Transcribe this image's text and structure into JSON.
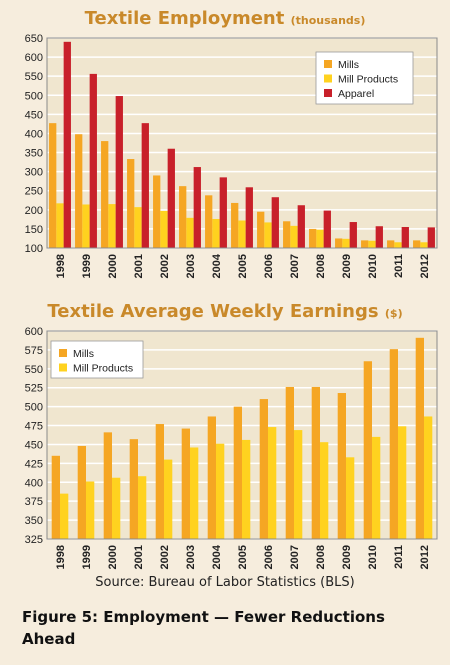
{
  "chart_data": [
    {
      "type": "bar",
      "title": "Textile Employment",
      "unit": "(thousands)",
      "categories": [
        "1998",
        "1999",
        "2000",
        "2001",
        "2002",
        "2003",
        "2004",
        "2005",
        "2006",
        "2007",
        "2008",
        "2009",
        "2010",
        "2011",
        "2012"
      ],
      "ylim": [
        100,
        650
      ],
      "yticks": [
        100,
        150,
        200,
        250,
        300,
        350,
        400,
        450,
        500,
        550,
        600,
        650
      ],
      "legend_position": "top-right",
      "grid": true,
      "series": [
        {
          "name": "Mills",
          "color": "#f5a623",
          "values": [
            427,
            398,
            380,
            333,
            290,
            262,
            238,
            218,
            195,
            170,
            150,
            125,
            120,
            120,
            120
          ]
        },
        {
          "name": "Mill Products",
          "color": "#ffd21f",
          "values": [
            217,
            214,
            215,
            207,
            197,
            179,
            176,
            172,
            167,
            158,
            148,
            124,
            119,
            115,
            115
          ]
        },
        {
          "name": "Apparel",
          "color": "#c8202a",
          "values": [
            640,
            556,
            498,
            427,
            360,
            312,
            285,
            259,
            233,
            212,
            198,
            168,
            157,
            155,
            154
          ]
        }
      ]
    },
    {
      "type": "bar",
      "title": "Textile Average Weekly Earnings",
      "unit": "($)",
      "categories": [
        "1998",
        "1999",
        "2000",
        "2001",
        "2002",
        "2003",
        "2004",
        "2005",
        "2006",
        "2007",
        "2008",
        "2009",
        "2010",
        "2011",
        "2012"
      ],
      "ylim": [
        325,
        600
      ],
      "yticks": [
        325,
        350,
        375,
        400,
        425,
        450,
        475,
        500,
        525,
        550,
        575,
        600
      ],
      "legend_position": "top-left",
      "grid": true,
      "series": [
        {
          "name": "Mills",
          "color": "#f5a623",
          "values": [
            435,
            448,
            466,
            457,
            477,
            471,
            487,
            500,
            510,
            526,
            526,
            518,
            560,
            576,
            591
          ]
        },
        {
          "name": "Mill Products",
          "color": "#ffd21f",
          "values": [
            385,
            401,
            406,
            408,
            430,
            446,
            451,
            456,
            473,
            469,
            453,
            433,
            460,
            474,
            487
          ]
        }
      ]
    }
  ],
  "source": "Source: Bureau of Labor Statistics (BLS)",
  "caption": "Figure 5: Employment — Fewer Reductions Ahead",
  "colors": {
    "title": "#c9892a",
    "plot_bg": "#f0e6cf",
    "grid": "#ffffff",
    "frame": "#8a8a8a"
  }
}
